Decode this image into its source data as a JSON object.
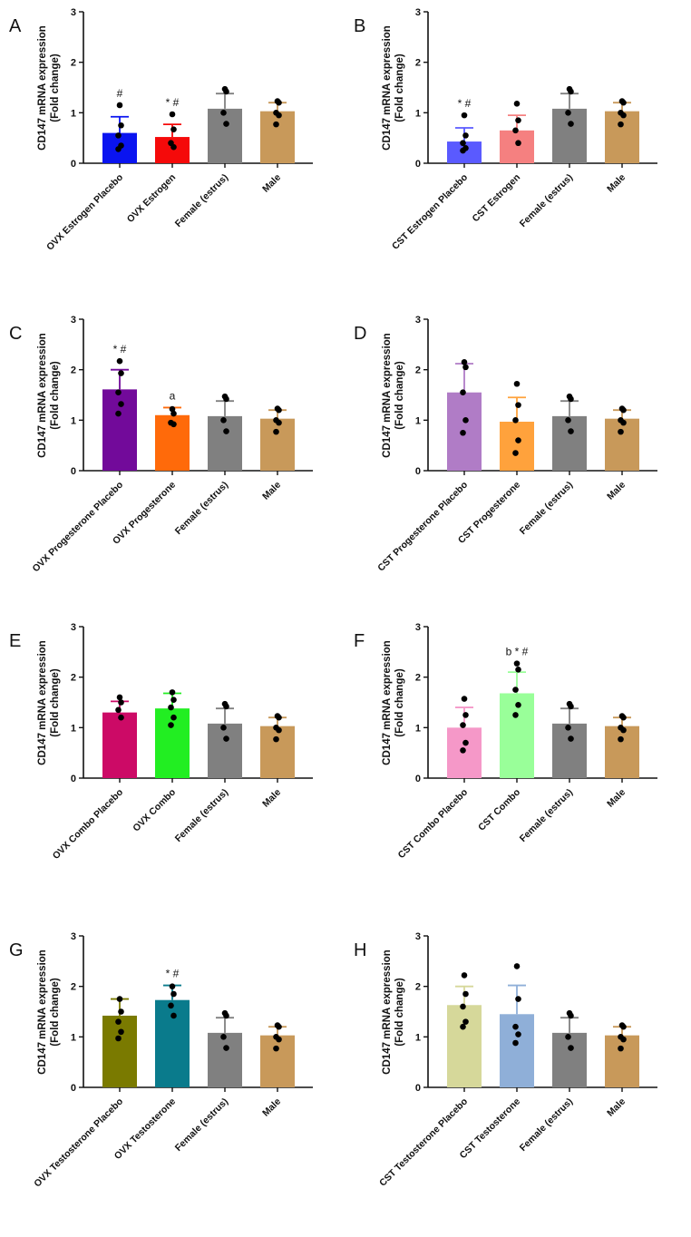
{
  "chart_data": [
    {
      "panel": "A",
      "type": "bar",
      "ylabel": "CD147 mRNA expression",
      "ylabel2": "(Fold change)",
      "ylim": [
        0,
        3
      ],
      "yticks": [
        "0",
        "1",
        "2",
        "3"
      ],
      "categories": [
        "OVX Estrogen Placebo",
        "OVX Estrogen",
        "Female (estrus)",
        "Male"
      ],
      "values": [
        0.6,
        0.52,
        1.08,
        1.03
      ],
      "error_upper": [
        0.92,
        0.77,
        1.38,
        1.2
      ],
      "points": [
        [
          1.15,
          0.75,
          0.55,
          0.35,
          0.28
        ],
        [
          0.97,
          0.67,
          0.4,
          0.32
        ],
        [
          1.47,
          1.42,
          1.0,
          0.78
        ],
        [
          1.23,
          1.2,
          1.0,
          0.95,
          0.77
        ]
      ],
      "annotations": [
        "#",
        "* #",
        "",
        ""
      ],
      "colors": [
        "#0a14f0",
        "#f50a0a",
        "#808080",
        "#c8995a"
      ]
    },
    {
      "panel": "B",
      "type": "bar",
      "ylabel": "CD147 mRNA expression",
      "ylabel2": "(Fold change)",
      "ylim": [
        0,
        3
      ],
      "yticks": [
        "0",
        "1",
        "2",
        "3"
      ],
      "categories": [
        "CST Estrogen Placebo",
        "CST Estrogen",
        "Female (estrus)",
        "Male"
      ],
      "values": [
        0.43,
        0.65,
        1.08,
        1.03
      ],
      "error_upper": [
        0.7,
        0.95,
        1.38,
        1.2
      ],
      "points": [
        [
          0.95,
          0.55,
          0.4,
          0.3,
          0.25
        ],
        [
          1.18,
          0.85,
          0.65,
          0.4
        ],
        [
          1.47,
          1.42,
          1.0,
          0.78
        ],
        [
          1.23,
          1.2,
          1.0,
          0.95,
          0.77
        ]
      ],
      "annotations": [
        "* #",
        "",
        "",
        ""
      ],
      "colors": [
        "#5a5aff",
        "#f58080",
        "#808080",
        "#c8995a"
      ]
    },
    {
      "panel": "C",
      "type": "bar",
      "ylabel": "CD147 mRNA expression",
      "ylabel2": "(Fold change)",
      "ylim": [
        0,
        3
      ],
      "yticks": [
        "0",
        "1",
        "2",
        "3"
      ],
      "categories": [
        "OVX Progesterone Placebo",
        "OVX Progesterone",
        "Female (estrus)",
        "Male"
      ],
      "values": [
        1.61,
        1.1,
        1.08,
        1.03
      ],
      "error_upper": [
        2.0,
        1.25,
        1.38,
        1.2
      ],
      "points": [
        [
          2.17,
          1.93,
          1.55,
          1.32,
          1.13
        ],
        [
          1.22,
          1.13,
          0.95,
          0.92
        ],
        [
          1.47,
          1.42,
          1.0,
          0.78
        ],
        [
          1.23,
          1.2,
          1.0,
          0.95,
          0.77
        ]
      ],
      "annotations": [
        "* #",
        "a",
        "",
        ""
      ],
      "colors": [
        "#720a9a",
        "#ff6a0a",
        "#808080",
        "#c8995a"
      ]
    },
    {
      "panel": "D",
      "type": "bar",
      "ylabel": "CD147 mRNA expression",
      "ylabel2": "(Fold change)",
      "ylim": [
        0,
        3
      ],
      "yticks": [
        "0",
        "1",
        "2",
        "3"
      ],
      "categories": [
        "CST Progesterone Placebo",
        "CST Progesterone",
        "Female (estrus)",
        "Male"
      ],
      "values": [
        1.55,
        0.97,
        1.08,
        1.03
      ],
      "error_upper": [
        2.12,
        1.45,
        1.38,
        1.2
      ],
      "points": [
        [
          2.15,
          2.05,
          1.55,
          1.0,
          0.75
        ],
        [
          1.72,
          1.3,
          1.0,
          0.6,
          0.35
        ],
        [
          1.47,
          1.42,
          1.0,
          0.78
        ],
        [
          1.23,
          1.2,
          1.0,
          0.95,
          0.77
        ]
      ],
      "annotations": [
        "",
        "",
        "",
        ""
      ],
      "colors": [
        "#b07cc6",
        "#ffa23c",
        "#808080",
        "#c8995a"
      ]
    },
    {
      "panel": "E",
      "type": "bar",
      "ylabel": "CD147 mRNA expression",
      "ylabel2": "(Fold change)",
      "ylim": [
        0,
        3
      ],
      "yticks": [
        "0",
        "1",
        "2",
        "3"
      ],
      "categories": [
        "OVX Combo Placebo",
        "OVX Combo",
        "Female (estrus)",
        "Male"
      ],
      "values": [
        1.3,
        1.38,
        1.08,
        1.03
      ],
      "error_upper": [
        1.52,
        1.68,
        1.38,
        1.2
      ],
      "points": [
        [
          1.6,
          1.5,
          1.35,
          1.2
        ],
        [
          1.7,
          1.55,
          1.4,
          1.2,
          1.05
        ],
        [
          1.47,
          1.42,
          1.0,
          0.78
        ],
        [
          1.23,
          1.2,
          1.0,
          0.95,
          0.77
        ]
      ],
      "annotations": [
        "",
        "",
        "",
        ""
      ],
      "colors": [
        "#cc0a66",
        "#22ee22",
        "#808080",
        "#c8995a"
      ]
    },
    {
      "panel": "F",
      "type": "bar",
      "ylabel": "CD147 mRNA expression",
      "ylabel2": "(Fold change)",
      "ylim": [
        0,
        3
      ],
      "yticks": [
        "0",
        "1",
        "2",
        "3"
      ],
      "categories": [
        "CST Combo Placebo",
        "CST Combo",
        "Female (estrus)",
        "Male"
      ],
      "values": [
        1.0,
        1.68,
        1.08,
        1.03
      ],
      "error_upper": [
        1.4,
        2.1,
        1.38,
        1.2
      ],
      "points": [
        [
          1.57,
          1.25,
          1.05,
          0.7,
          0.55
        ],
        [
          2.27,
          2.15,
          1.75,
          1.45,
          1.25
        ],
        [
          1.47,
          1.42,
          1.0,
          0.78
        ],
        [
          1.23,
          1.2,
          1.0,
          0.95,
          0.77
        ]
      ],
      "annotations": [
        "",
        "b * #",
        "",
        ""
      ],
      "colors": [
        "#f598c8",
        "#99ff99",
        "#808080",
        "#c8995a"
      ]
    },
    {
      "panel": "G",
      "type": "bar",
      "ylabel": "CD147 mRNA expression",
      "ylabel2": "(Fold change)",
      "ylim": [
        0,
        3
      ],
      "yticks": [
        "0",
        "1",
        "2",
        "3"
      ],
      "categories": [
        "OVX Testosterone Placebo",
        "OVX Testosterone",
        "Female (estrus)",
        "Male"
      ],
      "values": [
        1.42,
        1.73,
        1.08,
        1.03
      ],
      "error_upper": [
        1.75,
        2.02,
        1.38,
        1.2
      ],
      "points": [
        [
          1.75,
          1.5,
          1.3,
          1.1,
          0.97
        ],
        [
          2.0,
          1.85,
          1.62,
          1.42
        ],
        [
          1.47,
          1.42,
          1.0,
          0.78
        ],
        [
          1.23,
          1.2,
          1.0,
          0.95,
          0.77
        ]
      ],
      "annotations": [
        "",
        "* #",
        "",
        ""
      ],
      "colors": [
        "#7a7a00",
        "#0a7b8c",
        "#808080",
        "#c8995a"
      ]
    },
    {
      "panel": "H",
      "type": "bar",
      "ylabel": "CD147 mRNA expression",
      "ylabel2": "(Fold change)",
      "ylim": [
        0,
        3
      ],
      "yticks": [
        "0",
        "1",
        "2",
        "3"
      ],
      "categories": [
        "CST Testosterone Placebo",
        "CST Testosterone",
        "Female (estrus)",
        "Male"
      ],
      "values": [
        1.63,
        1.45,
        1.08,
        1.03
      ],
      "error_upper": [
        2.0,
        2.02,
        1.38,
        1.2
      ],
      "points": [
        [
          2.22,
          1.85,
          1.6,
          1.3,
          1.2
        ],
        [
          2.4,
          1.75,
          1.2,
          1.05,
          0.88
        ],
        [
          1.47,
          1.42,
          1.0,
          0.78
        ],
        [
          1.23,
          1.2,
          1.0,
          0.95,
          0.77
        ]
      ],
      "annotations": [
        "",
        "",
        "",
        ""
      ],
      "colors": [
        "#d6d89a",
        "#8fafd8",
        "#808080",
        "#c8995a"
      ]
    }
  ]
}
